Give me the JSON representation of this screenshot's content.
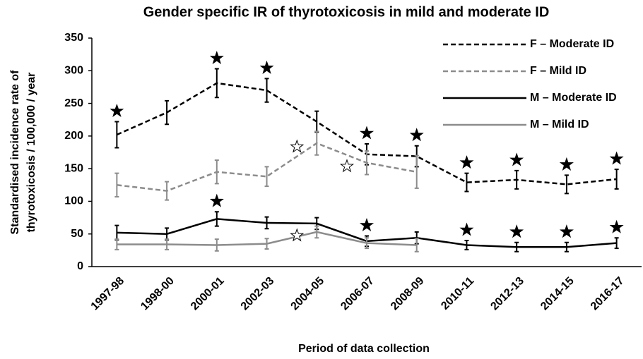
{
  "chart_data": {
    "type": "line",
    "title": "Gender specific IR of thyrotoxicosis in mild and moderate ID",
    "xlabel": "Period of data collection",
    "ylabel": [
      "Standardised incidence rate of",
      "thyrotoxicosis / 100,000 / year"
    ],
    "categories": [
      "1997-98",
      "1998-00",
      "2000-01",
      "2002-03",
      "2004-05",
      "2006-07",
      "2008-09",
      "2010-11",
      "2012-13",
      "2014-15",
      "2016-17"
    ],
    "ylim": [
      0,
      350
    ],
    "yticks": [
      0,
      50,
      100,
      150,
      200,
      250,
      300,
      350
    ],
    "legend": "upper right",
    "series": [
      {
        "name": "F – Moderate ID",
        "color": "#000000",
        "dashed": true,
        "values": [
          202,
          236,
          281,
          270,
          222,
          172,
          169,
          129,
          133,
          126,
          134
        ],
        "errors": [
          20,
          18,
          22,
          18,
          16,
          16,
          16,
          14,
          14,
          14,
          15
        ],
        "significant": [
          "filled",
          null,
          "filled",
          "filled",
          null,
          "filled",
          "filled",
          "filled",
          "filled",
          "filled",
          "filled"
        ]
      },
      {
        "name": "F – Mild ID",
        "color": "#8c8c8c",
        "dashed": true,
        "values": [
          125,
          116,
          145,
          138,
          189,
          159,
          145,
          null,
          null,
          null,
          null
        ],
        "errors": [
          18,
          14,
          18,
          15,
          18,
          18,
          25,
          null,
          null,
          null,
          null
        ],
        "significant": [
          null,
          null,
          null,
          null,
          "hollow",
          "hollow",
          null,
          null,
          null,
          null,
          null
        ]
      },
      {
        "name": "M – Moderate ID",
        "color": "#000000",
        "dashed": false,
        "values": [
          52,
          50,
          73,
          67,
          66,
          39,
          44,
          33,
          30,
          30,
          36
        ],
        "errors": [
          11,
          9,
          11,
          9,
          9,
          8,
          9,
          7,
          7,
          7,
          8
        ],
        "significant": [
          null,
          null,
          "filled",
          null,
          null,
          "filled",
          null,
          "filled",
          "filled",
          "filled",
          "filled"
        ]
      },
      {
        "name": "M – Mild ID",
        "color": "#8c8c8c",
        "dashed": false,
        "values": [
          34,
          34,
          33,
          35,
          53,
          36,
          33,
          null,
          null,
          null,
          null
        ],
        "errors": [
          8,
          8,
          9,
          8,
          9,
          8,
          10,
          null,
          null,
          null,
          null
        ],
        "significant": [
          null,
          null,
          null,
          null,
          "hollow",
          null,
          null,
          null,
          null,
          null,
          null
        ]
      }
    ]
  }
}
